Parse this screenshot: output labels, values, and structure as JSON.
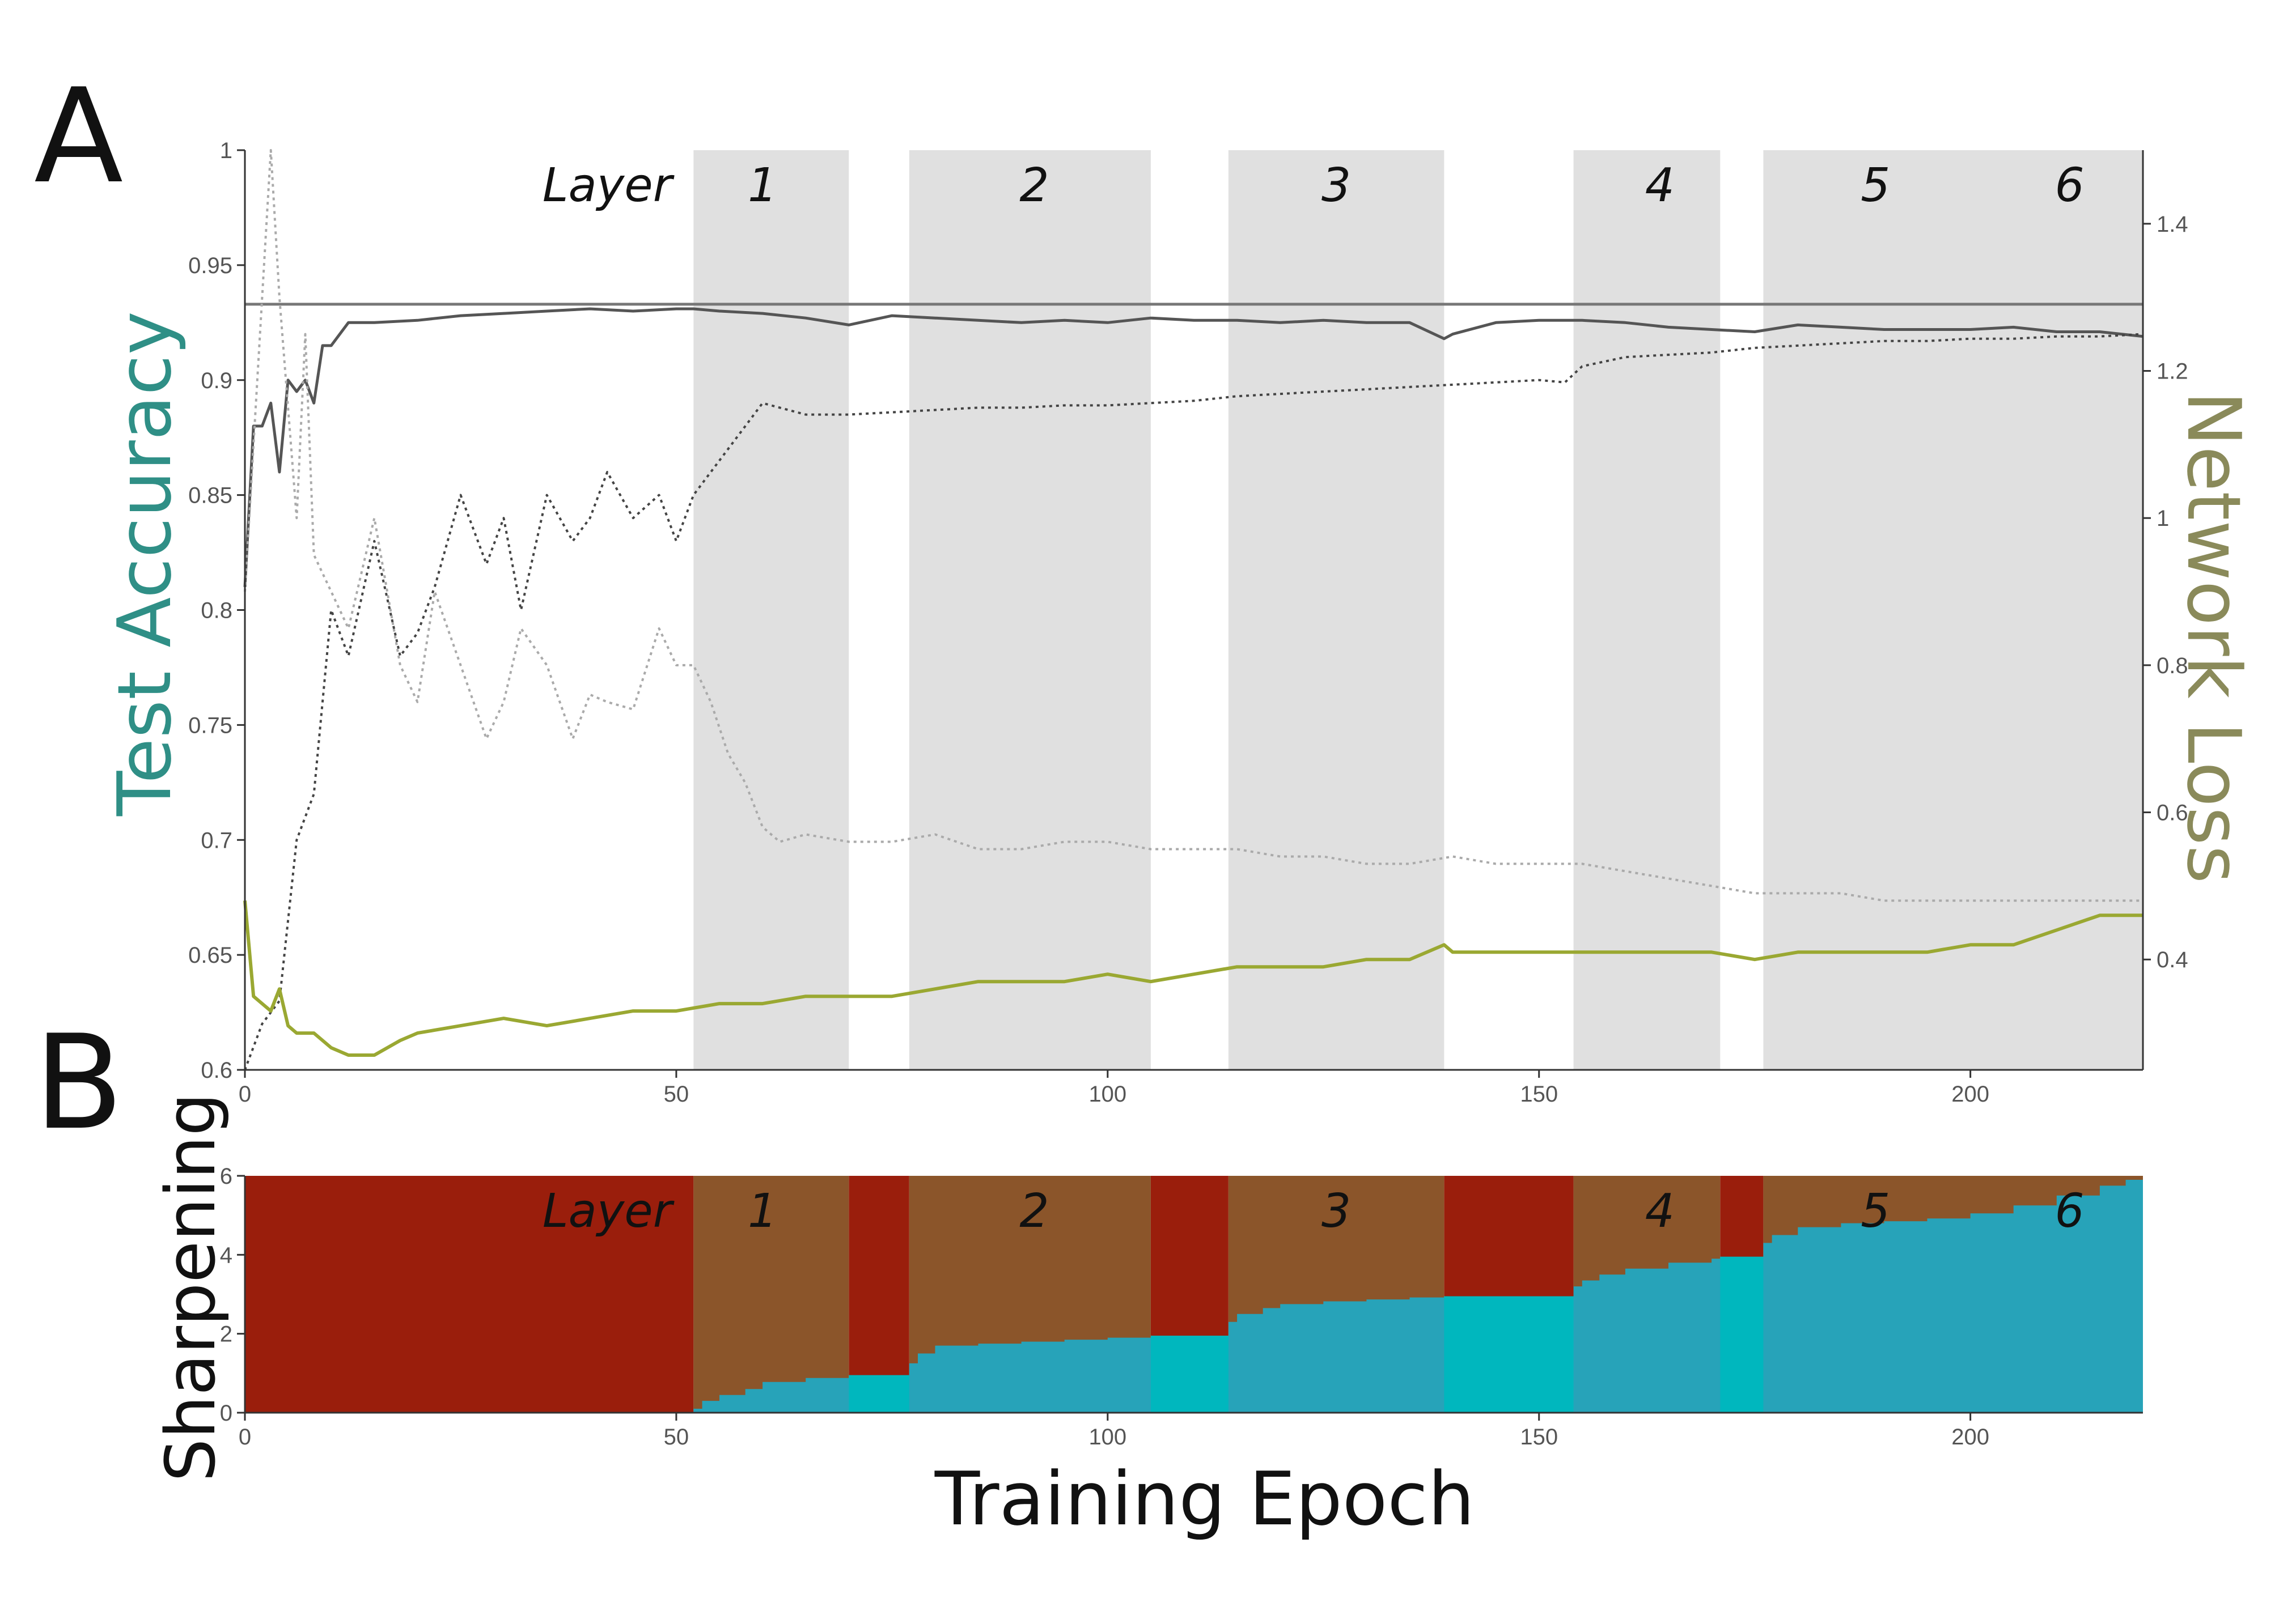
{
  "figure": {
    "panel_a_letter": "A",
    "panel_b_letter": "B"
  },
  "colors": {
    "accuracy_label": "#2f8f86",
    "loss_label": "#8a8a5a",
    "shade": "#e0e0e0",
    "red": "#9a1e0c",
    "brown": "#8b552a",
    "teal": "#27a3b9",
    "cyan": "#00b7be"
  },
  "chart_data": [
    {
      "type": "line",
      "panel": "A",
      "title": "",
      "xlabel": "",
      "ylabel": "Test Accuracy",
      "y2label": "Network Loss",
      "xlim": [
        0,
        220
      ],
      "ylim": [
        0.6,
        1.0
      ],
      "y2lim": [
        0.25,
        1.5
      ],
      "xticks": [
        0,
        50,
        100,
        150,
        200
      ],
      "yticks": [
        0.6,
        0.65,
        0.7,
        0.75,
        0.8,
        0.85,
        0.9,
        0.95,
        1
      ],
      "y2ticks": [
        0.4,
        0.6,
        0.8,
        1,
        1.2,
        1.4
      ],
      "layer_title": "Layer",
      "layers": [
        {
          "label": "1",
          "start": 52,
          "end": 70
        },
        {
          "label": "2",
          "start": 77,
          "end": 105
        },
        {
          "label": "3",
          "start": 114,
          "end": 139
        },
        {
          "label": "4",
          "start": 154,
          "end": 171
        },
        {
          "label": "5",
          "start": 176,
          "end": 220
        },
        {
          "label": "6",
          "start": 176,
          "end": 220
        }
      ],
      "layer_label_x": [
        60,
        91.5,
        126.5,
        164,
        189,
        211.5
      ],
      "reference_line": {
        "axis": "left",
        "y": 0.933
      },
      "series": [
        {
          "role": "accuracy-solid",
          "axis": "left",
          "style": "solid",
          "x": [
            0,
            1,
            2,
            3,
            4,
            5,
            6,
            7,
            8,
            9,
            10,
            12,
            15,
            20,
            25,
            30,
            35,
            40,
            45,
            50,
            52,
            55,
            60,
            65,
            70,
            75,
            80,
            85,
            90,
            95,
            100,
            105,
            110,
            115,
            120,
            125,
            130,
            135,
            139,
            140,
            145,
            150,
            155,
            160,
            165,
            170,
            175,
            180,
            185,
            190,
            195,
            200,
            205,
            210,
            215,
            220
          ],
          "y": [
            0.81,
            0.88,
            0.88,
            0.89,
            0.86,
            0.9,
            0.895,
            0.9,
            0.89,
            0.915,
            0.915,
            0.925,
            0.925,
            0.926,
            0.928,
            0.929,
            0.93,
            0.931,
            0.93,
            0.931,
            0.931,
            0.93,
            0.929,
            0.927,
            0.924,
            0.928,
            0.927,
            0.926,
            0.925,
            0.926,
            0.925,
            0.927,
            0.926,
            0.926,
            0.925,
            0.926,
            0.925,
            0.925,
            0.918,
            0.92,
            0.925,
            0.926,
            0.926,
            0.925,
            0.923,
            0.922,
            0.921,
            0.924,
            0.923,
            0.922,
            0.922,
            0.922,
            0.923,
            0.921,
            0.921,
            0.919
          ]
        },
        {
          "role": "accuracy-dotted",
          "axis": "left",
          "style": "dotted",
          "x": [
            0,
            2,
            4,
            6,
            8,
            10,
            12,
            15,
            18,
            20,
            22,
            25,
            28,
            30,
            32,
            35,
            38,
            40,
            42,
            45,
            48,
            50,
            52,
            54,
            56,
            58,
            60,
            65,
            70,
            75,
            80,
            85,
            90,
            95,
            100,
            105,
            110,
            115,
            120,
            125,
            130,
            135,
            140,
            145,
            150,
            153,
            155,
            160,
            165,
            170,
            175,
            180,
            185,
            190,
            195,
            200,
            205,
            210,
            215,
            220
          ],
          "y": [
            0.6,
            0.62,
            0.63,
            0.7,
            0.72,
            0.8,
            0.78,
            0.83,
            0.78,
            0.79,
            0.81,
            0.85,
            0.82,
            0.84,
            0.8,
            0.85,
            0.83,
            0.84,
            0.86,
            0.84,
            0.85,
            0.83,
            0.85,
            0.86,
            0.87,
            0.88,
            0.89,
            0.885,
            0.885,
            0.886,
            0.887,
            0.888,
            0.888,
            0.889,
            0.889,
            0.89,
            0.891,
            0.893,
            0.894,
            0.895,
            0.896,
            0.897,
            0.898,
            0.899,
            0.9,
            0.899,
            0.906,
            0.91,
            0.911,
            0.912,
            0.914,
            0.915,
            0.916,
            0.917,
            0.917,
            0.918,
            0.918,
            0.919,
            0.919,
            0.92
          ]
        },
        {
          "role": "loss-solid",
          "axis": "right",
          "style": "solid",
          "x": [
            0,
            1,
            2,
            3,
            4,
            5,
            6,
            8,
            10,
            12,
            15,
            18,
            20,
            25,
            30,
            35,
            40,
            45,
            50,
            55,
            60,
            65,
            70,
            75,
            80,
            85,
            90,
            95,
            100,
            105,
            110,
            115,
            120,
            125,
            130,
            135,
            139,
            140,
            145,
            150,
            155,
            160,
            165,
            170,
            175,
            180,
            185,
            190,
            195,
            200,
            205,
            210,
            215,
            220
          ],
          "y": [
            0.48,
            0.35,
            0.34,
            0.33,
            0.36,
            0.31,
            0.3,
            0.3,
            0.28,
            0.27,
            0.27,
            0.29,
            0.3,
            0.31,
            0.32,
            0.31,
            0.32,
            0.33,
            0.33,
            0.34,
            0.34,
            0.35,
            0.35,
            0.35,
            0.36,
            0.37,
            0.37,
            0.37,
            0.38,
            0.37,
            0.38,
            0.39,
            0.39,
            0.39,
            0.4,
            0.4,
            0.42,
            0.41,
            0.41,
            0.41,
            0.41,
            0.41,
            0.41,
            0.41,
            0.4,
            0.41,
            0.41,
            0.41,
            0.41,
            0.42,
            0.42,
            0.44,
            0.46,
            0.46
          ]
        },
        {
          "role": "loss-dotted",
          "axis": "right",
          "style": "dotted",
          "x": [
            0,
            2,
            3,
            4,
            6,
            7,
            8,
            10,
            12,
            15,
            18,
            20,
            22,
            25,
            28,
            30,
            32,
            35,
            38,
            40,
            42,
            45,
            48,
            50,
            52,
            54,
            56,
            58,
            60,
            62,
            65,
            70,
            75,
            80,
            85,
            90,
            95,
            100,
            105,
            110,
            115,
            120,
            125,
            130,
            135,
            140,
            145,
            150,
            155,
            160,
            165,
            170,
            175,
            180,
            185,
            190,
            195,
            200,
            205,
            210,
            215,
            220
          ],
          "y": [
            0.9,
            1.3,
            1.5,
            1.3,
            1.0,
            1.25,
            0.95,
            0.9,
            0.85,
            1.0,
            0.8,
            0.75,
            0.9,
            0.8,
            0.7,
            0.75,
            0.85,
            0.8,
            0.7,
            0.76,
            0.75,
            0.74,
            0.85,
            0.8,
            0.8,
            0.75,
            0.68,
            0.64,
            0.58,
            0.56,
            0.57,
            0.56,
            0.56,
            0.57,
            0.55,
            0.55,
            0.56,
            0.56,
            0.55,
            0.55,
            0.55,
            0.54,
            0.54,
            0.53,
            0.53,
            0.54,
            0.53,
            0.53,
            0.53,
            0.52,
            0.51,
            0.5,
            0.49,
            0.49,
            0.49,
            0.48,
            0.48,
            0.48,
            0.48,
            0.48,
            0.48,
            0.48
          ]
        }
      ]
    },
    {
      "type": "area",
      "panel": "B",
      "title": "",
      "xlabel": "Training Epoch",
      "ylabel": "Sharpening",
      "xlim": [
        0,
        220
      ],
      "ylim": [
        0,
        6
      ],
      "xticks": [
        0,
        50,
        100,
        150,
        200
      ],
      "yticks": [
        0,
        2,
        4,
        6
      ],
      "layer_title": "Layer",
      "red_intervals": [
        [
          0,
          52
        ],
        [
          70,
          77
        ],
        [
          105,
          114
        ],
        [
          139,
          154
        ],
        [
          171,
          176
        ]
      ],
      "brown_intervals": [
        [
          52,
          70
        ],
        [
          77,
          105
        ],
        [
          114,
          139
        ],
        [
          154,
          171
        ],
        [
          176,
          220
        ]
      ],
      "cyan_intervals": [
        [
          70,
          77
        ],
        [
          105,
          114
        ],
        [
          139,
          154
        ],
        [
          171,
          176
        ]
      ],
      "sharpening_steps": {
        "x": [
          52,
          53,
          55,
          58,
          60,
          65,
          70,
          77,
          78,
          80,
          85,
          90,
          95,
          100,
          105,
          114,
          115,
          118,
          120,
          125,
          130,
          135,
          139,
          154,
          155,
          157,
          160,
          165,
          170,
          171,
          176,
          177,
          180,
          185,
          190,
          195,
          200,
          205,
          210,
          215,
          218,
          220
        ],
        "y": [
          0.1,
          0.3,
          0.45,
          0.6,
          0.78,
          0.88,
          0.95,
          1.25,
          1.5,
          1.7,
          1.75,
          1.8,
          1.85,
          1.9,
          1.95,
          2.3,
          2.5,
          2.65,
          2.75,
          2.82,
          2.87,
          2.92,
          2.95,
          3.2,
          3.35,
          3.5,
          3.65,
          3.8,
          3.9,
          3.95,
          4.3,
          4.5,
          4.7,
          4.8,
          4.85,
          4.92,
          5.05,
          5.25,
          5.5,
          5.75,
          5.9,
          6.0
        ]
      }
    }
  ]
}
